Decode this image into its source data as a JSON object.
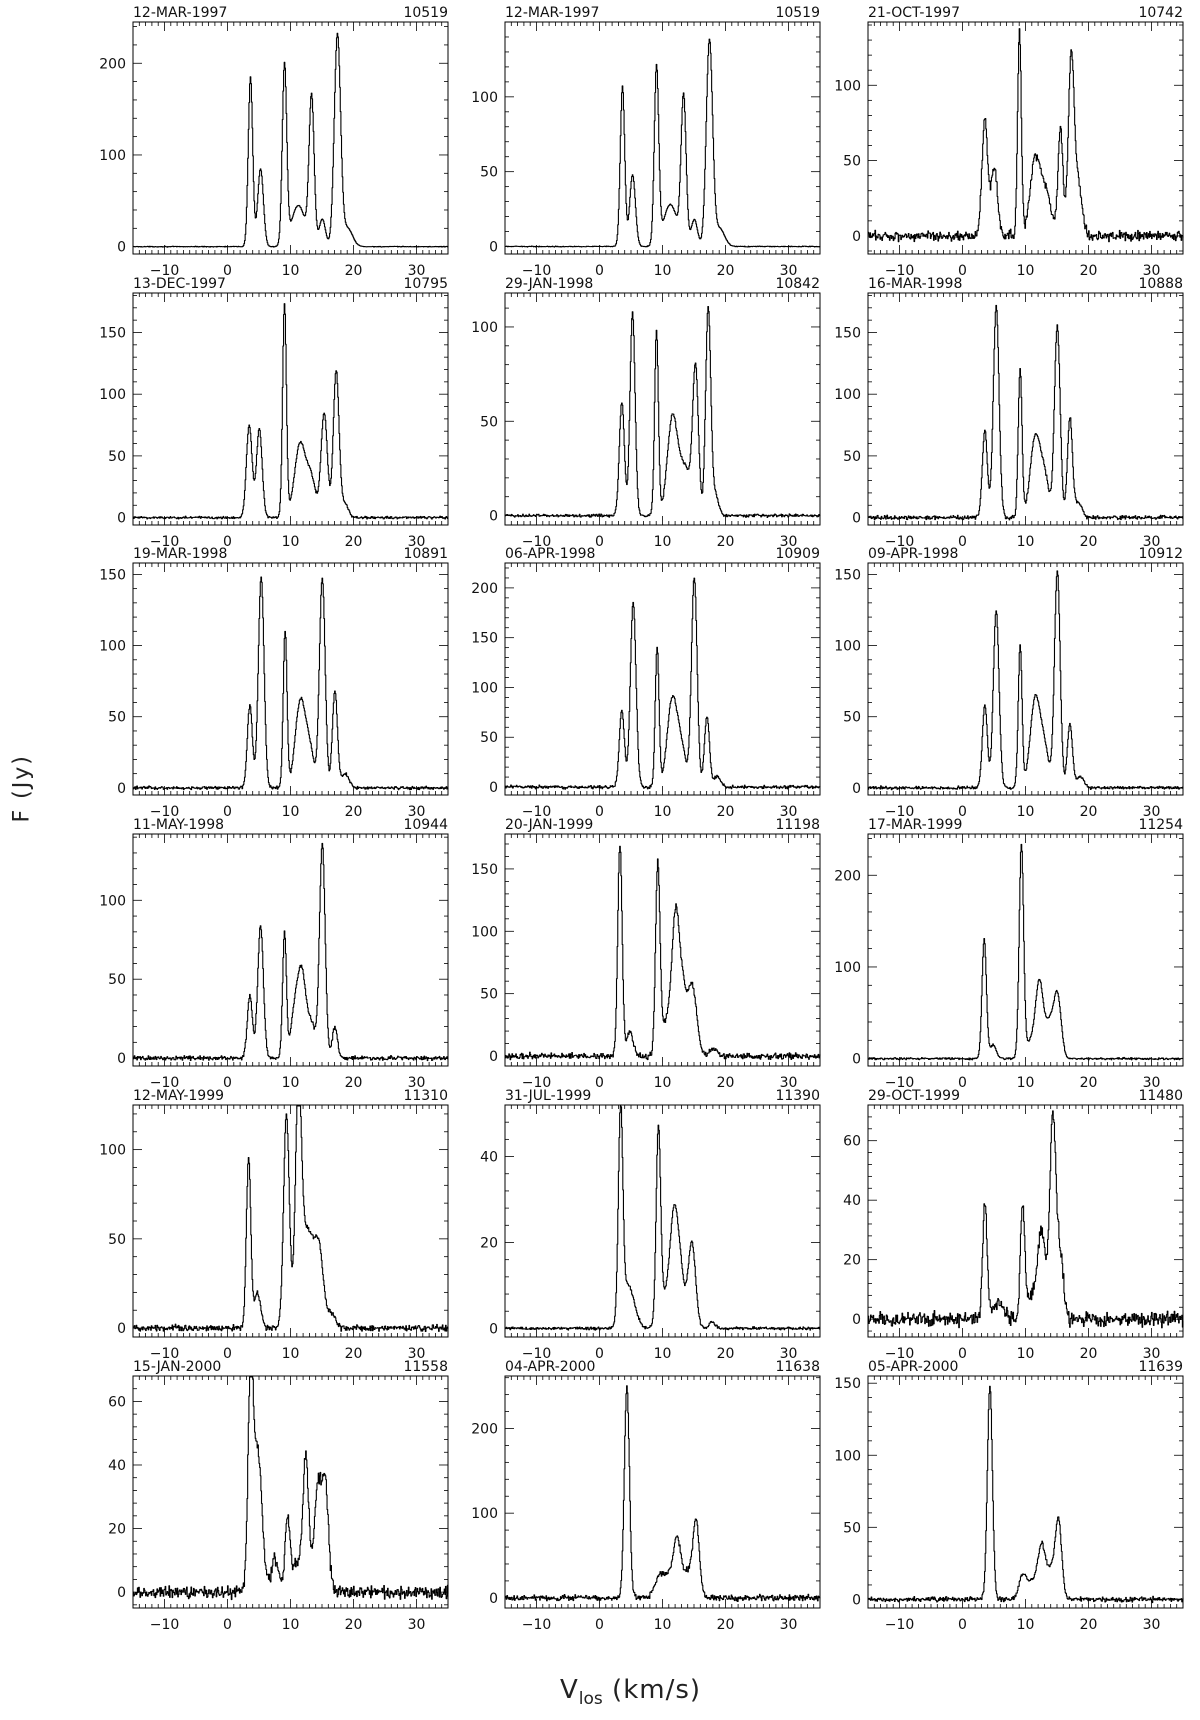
{
  "figure": {
    "ylabel": "F (Jy)",
    "xlabel_main": "V",
    "xlabel_sub": "los",
    "xlabel_unit": "(km/s)"
  },
  "chart_data": [
    {
      "type": "line",
      "title": "12-MAR-1997",
      "id": "10519",
      "xlim": [
        -15,
        35
      ],
      "ylim": [
        -8,
        245
      ],
      "yticks": [
        0,
        100,
        200
      ],
      "xticks": [
        -10,
        0,
        10,
        20,
        30
      ],
      "components": [
        [
          3.6,
          185,
          0.35
        ],
        [
          5.2,
          85,
          0.45
        ],
        [
          9.0,
          195,
          0.35
        ],
        [
          11.2,
          45,
          1.1
        ],
        [
          13.3,
          160,
          0.4
        ],
        [
          15.0,
          30,
          0.5
        ],
        [
          17.4,
          230,
          0.5
        ],
        [
          19.0,
          20,
          0.8
        ]
      ],
      "noise": 0.3
    },
    {
      "type": "line",
      "title": "12-MAR-1997",
      "id": "10519",
      "xlim": [
        -15,
        35
      ],
      "ylim": [
        -5,
        150
      ],
      "yticks": [
        0,
        50,
        100
      ],
      "xticks": [
        -10,
        0,
        10,
        20,
        30
      ],
      "components": [
        [
          3.6,
          107,
          0.35
        ],
        [
          5.2,
          48,
          0.45
        ],
        [
          9.0,
          118,
          0.35
        ],
        [
          11.2,
          28,
          1.1
        ],
        [
          13.3,
          98,
          0.4
        ],
        [
          15.0,
          18,
          0.5
        ],
        [
          17.4,
          137,
          0.5
        ],
        [
          19.0,
          12,
          0.8
        ]
      ],
      "noise": 0.2
    },
    {
      "type": "line",
      "title": "21-OCT-1997",
      "id": "10742",
      "xlim": [
        -15,
        35
      ],
      "ylim": [
        -12,
        142
      ],
      "yticks": [
        0,
        50,
        100
      ],
      "xticks": [
        -10,
        0,
        10,
        20,
        30
      ],
      "components": [
        [
          3.5,
          78,
          0.45
        ],
        [
          5.0,
          45,
          0.5
        ],
        [
          9.0,
          133,
          0.3
        ],
        [
          11.5,
          50,
          0.8
        ],
        [
          13.2,
          28,
          0.8
        ],
        [
          15.5,
          70,
          0.4
        ],
        [
          17.2,
          118,
          0.45
        ],
        [
          18.3,
          35,
          0.6
        ]
      ],
      "noise": 2.5
    },
    {
      "type": "line",
      "title": "13-DEC-1997",
      "id": "10795",
      "xlim": [
        -15,
        35
      ],
      "ylim": [
        -6,
        182
      ],
      "yticks": [
        0,
        50,
        100,
        150
      ],
      "xticks": [
        -10,
        0,
        10,
        20,
        30
      ],
      "components": [
        [
          3.4,
          75,
          0.45
        ],
        [
          5.0,
          72,
          0.45
        ],
        [
          9.0,
          172,
          0.3
        ],
        [
          11.5,
          60,
          0.9
        ],
        [
          13.3,
          28,
          0.7
        ],
        [
          15.3,
          85,
          0.5
        ],
        [
          17.2,
          118,
          0.45
        ],
        [
          18.5,
          12,
          0.6
        ]
      ],
      "noise": 0.8
    },
    {
      "type": "line",
      "title": "29-JAN-1998",
      "id": "10842",
      "xlim": [
        -15,
        35
      ],
      "ylim": [
        -5,
        118
      ],
      "yticks": [
        0,
        50,
        100
      ],
      "xticks": [
        -10,
        0,
        10,
        20,
        30
      ],
      "components": [
        [
          3.5,
          60,
          0.4
        ],
        [
          5.2,
          108,
          0.4
        ],
        [
          9.0,
          98,
          0.3
        ],
        [
          11.5,
          50,
          0.8
        ],
        [
          13.5,
          25,
          1.0
        ],
        [
          15.2,
          75,
          0.45
        ],
        [
          17.2,
          108,
          0.4
        ],
        [
          18.2,
          12,
          0.6
        ]
      ],
      "noise": 0.6
    },
    {
      "type": "line",
      "title": "16-MAR-1998",
      "id": "10888",
      "xlim": [
        -15,
        35
      ],
      "ylim": [
        -6,
        182
      ],
      "yticks": [
        0,
        50,
        100,
        150
      ],
      "xticks": [
        -10,
        0,
        10,
        20,
        30
      ],
      "components": [
        [
          3.5,
          70,
          0.4
        ],
        [
          5.3,
          172,
          0.45
        ],
        [
          9.1,
          120,
          0.3
        ],
        [
          11.5,
          65,
          0.8
        ],
        [
          13.0,
          30,
          0.7
        ],
        [
          15.0,
          155,
          0.45
        ],
        [
          17.0,
          80,
          0.4
        ],
        [
          18.3,
          12,
          0.6
        ]
      ],
      "noise": 1.2
    },
    {
      "type": "line",
      "title": "19-MAR-1998",
      "id": "10891",
      "xlim": [
        -15,
        35
      ],
      "ylim": [
        -5,
        158
      ],
      "yticks": [
        0,
        50,
        100,
        150
      ],
      "xticks": [
        -10,
        0,
        10,
        20,
        30
      ],
      "components": [
        [
          3.5,
          58,
          0.4
        ],
        [
          5.3,
          148,
          0.45
        ],
        [
          9.1,
          110,
          0.3
        ],
        [
          11.5,
          60,
          0.8
        ],
        [
          13.0,
          25,
          0.7
        ],
        [
          15.0,
          148,
          0.45
        ],
        [
          17.0,
          68,
          0.4
        ],
        [
          18.6,
          10,
          0.6
        ]
      ],
      "noise": 0.8
    },
    {
      "type": "line",
      "title": "06-APR-1998",
      "id": "10909",
      "xlim": [
        -15,
        35
      ],
      "ylim": [
        -8,
        225
      ],
      "yticks": [
        0,
        50,
        100,
        150,
        200
      ],
      "xticks": [
        -10,
        0,
        10,
        20,
        30
      ],
      "components": [
        [
          3.5,
          78,
          0.4
        ],
        [
          5.3,
          185,
          0.45
        ],
        [
          9.1,
          140,
          0.3
        ],
        [
          11.5,
          88,
          0.8
        ],
        [
          13.0,
          35,
          0.7
        ],
        [
          15.0,
          210,
          0.45
        ],
        [
          17.0,
          70,
          0.4
        ],
        [
          18.6,
          10,
          0.6
        ]
      ],
      "noise": 1.2
    },
    {
      "type": "line",
      "title": "09-APR-1998",
      "id": "10912",
      "xlim": [
        -15,
        35
      ],
      "ylim": [
        -5,
        158
      ],
      "yticks": [
        0,
        50,
        100,
        150
      ],
      "xticks": [
        -10,
        0,
        10,
        20,
        30
      ],
      "components": [
        [
          3.5,
          58,
          0.4
        ],
        [
          5.3,
          125,
          0.45
        ],
        [
          9.1,
          100,
          0.3
        ],
        [
          11.5,
          62,
          0.8
        ],
        [
          13.0,
          25,
          0.7
        ],
        [
          15.0,
          152,
          0.45
        ],
        [
          17.0,
          45,
          0.4
        ],
        [
          18.6,
          8,
          0.6
        ]
      ],
      "noise": 0.8
    },
    {
      "type": "line",
      "title": "11-MAY-1998",
      "id": "10944",
      "xlim": [
        -15,
        35
      ],
      "ylim": [
        -5,
        142
      ],
      "yticks": [
        0,
        50,
        100
      ],
      "xticks": [
        -10,
        0,
        10,
        20,
        30
      ],
      "components": [
        [
          3.5,
          40,
          0.4
        ],
        [
          5.2,
          84,
          0.45
        ],
        [
          9.0,
          80,
          0.3
        ],
        [
          10.5,
          22,
          0.6
        ],
        [
          11.7,
          55,
          0.7
        ],
        [
          13.3,
          20,
          0.6
        ],
        [
          15.0,
          135,
          0.45
        ],
        [
          17.0,
          20,
          0.4
        ]
      ],
      "noise": 1.0
    },
    {
      "type": "line",
      "title": "20-JAN-1999",
      "id": "11198",
      "xlim": [
        -15,
        35
      ],
      "ylim": [
        -8,
        178
      ],
      "yticks": [
        0,
        50,
        100,
        150
      ],
      "xticks": [
        -10,
        0,
        10,
        20,
        30
      ],
      "components": [
        [
          3.2,
          170,
          0.35
        ],
        [
          4.8,
          20,
          0.5
        ],
        [
          9.2,
          148,
          0.35
        ],
        [
          10.8,
          30,
          1.0
        ],
        [
          12.0,
          85,
          0.55
        ],
        [
          13.0,
          55,
          0.7
        ],
        [
          14.7,
          55,
          0.7
        ],
        [
          18.0,
          6,
          0.6
        ]
      ],
      "noise": 1.8
    },
    {
      "type": "line",
      "title": "17-MAR-1999",
      "id": "11254",
      "xlim": [
        -15,
        35
      ],
      "ylim": [
        -8,
        245
      ],
      "yticks": [
        0,
        100,
        200
      ],
      "xticks": [
        -10,
        0,
        10,
        20,
        30
      ],
      "components": [
        [
          3.4,
          130,
          0.35
        ],
        [
          4.8,
          15,
          0.5
        ],
        [
          9.3,
          230,
          0.35
        ],
        [
          11.0,
          20,
          1.0
        ],
        [
          12.2,
          75,
          0.6
        ],
        [
          15.0,
          70,
          0.6
        ],
        [
          13.7,
          35,
          0.6
        ]
      ],
      "noise": 0.8
    },
    {
      "type": "line",
      "title": "12-MAY-1999",
      "id": "11310",
      "xlim": [
        -15,
        35
      ],
      "ylim": [
        -5,
        125
      ],
      "yticks": [
        0,
        50,
        100
      ],
      "xticks": [
        -10,
        0,
        10,
        20,
        30
      ],
      "components": [
        [
          3.3,
          95,
          0.35
        ],
        [
          4.7,
          20,
          0.5
        ],
        [
          9.3,
          118,
          0.45
        ],
        [
          11.2,
          115,
          0.45
        ],
        [
          12.5,
          55,
          1.2
        ],
        [
          14.5,
          35,
          0.7
        ],
        [
          16.5,
          8,
          0.6
        ]
      ],
      "noise": 1.2
    },
    {
      "type": "line",
      "title": "31-JUL-1999",
      "id": "11390",
      "xlim": [
        -15,
        35
      ],
      "ylim": [
        -2,
        52
      ],
      "yticks": [
        0,
        20,
        40
      ],
      "xticks": [
        -10,
        0,
        10,
        20,
        30
      ],
      "components": [
        [
          3.3,
          48,
          0.35
        ],
        [
          4.5,
          10,
          1.0
        ],
        [
          9.3,
          44,
          0.35
        ],
        [
          10.6,
          8,
          1.0
        ],
        [
          11.8,
          22,
          0.6
        ],
        [
          12.8,
          12,
          0.6
        ],
        [
          14.6,
          20,
          0.6
        ],
        [
          17.8,
          1.5,
          0.5
        ]
      ],
      "noise": 0.25
    },
    {
      "type": "line",
      "title": "29-OCT-1999",
      "id": "11480",
      "xlim": [
        -15,
        35
      ],
      "ylim": [
        -6,
        72
      ],
      "yticks": [
        0,
        20,
        40,
        60
      ],
      "xticks": [
        -10,
        0,
        10,
        20,
        30
      ],
      "components": [
        [
          3.5,
          38,
          0.35
        ],
        [
          5.5,
          5,
          1.0
        ],
        [
          9.5,
          38,
          0.35
        ],
        [
          12.5,
          28,
          0.6
        ],
        [
          11.0,
          8,
          0.8
        ],
        [
          14.3,
          68,
          0.5
        ],
        [
          15.5,
          20,
          0.5
        ]
      ],
      "noise": 1.8
    },
    {
      "type": "line",
      "title": "15-JAN-2000",
      "id": "11558",
      "xlim": [
        -15,
        35
      ],
      "ylim": [
        -5,
        68
      ],
      "yticks": [
        0,
        20,
        40,
        60
      ],
      "xticks": [
        -10,
        0,
        10,
        20,
        30
      ],
      "components": [
        [
          3.6,
          62,
          0.4
        ],
        [
          4.7,
          45,
          0.7
        ],
        [
          7.5,
          10,
          0.6
        ],
        [
          9.5,
          23,
          0.4
        ],
        [
          11.0,
          10,
          0.7
        ],
        [
          12.4,
          42,
          0.45
        ],
        [
          14.3,
          33,
          0.6
        ],
        [
          15.5,
          32,
          0.5
        ]
      ],
      "noise": 1.5
    },
    {
      "type": "line",
      "title": "04-APR-2000",
      "id": "11638",
      "xlim": [
        -15,
        35
      ],
      "ylim": [
        -12,
        262
      ],
      "yticks": [
        0,
        100,
        200
      ],
      "xticks": [
        -10,
        0,
        10,
        20,
        30
      ],
      "components": [
        [
          4.3,
          250,
          0.4
        ],
        [
          9.3,
          20,
          0.7
        ],
        [
          10.8,
          25,
          0.9
        ],
        [
          12.3,
          65,
          0.6
        ],
        [
          15.3,
          88,
          0.5
        ],
        [
          14.0,
          30,
          0.7
        ]
      ],
      "noise": 2.5
    },
    {
      "type": "line",
      "title": "05-APR-2000",
      "id": "11639",
      "xlim": [
        -15,
        35
      ],
      "ylim": [
        -6,
        155
      ],
      "yticks": [
        0,
        50,
        100,
        150
      ],
      "xticks": [
        -10,
        0,
        10,
        20,
        30
      ],
      "components": [
        [
          4.3,
          148,
          0.4
        ],
        [
          9.5,
          15,
          0.6
        ],
        [
          11.0,
          12,
          0.8
        ],
        [
          12.5,
          35,
          0.6
        ],
        [
          15.2,
          52,
          0.5
        ],
        [
          14.0,
          20,
          0.7
        ]
      ],
      "noise": 1.2
    }
  ]
}
